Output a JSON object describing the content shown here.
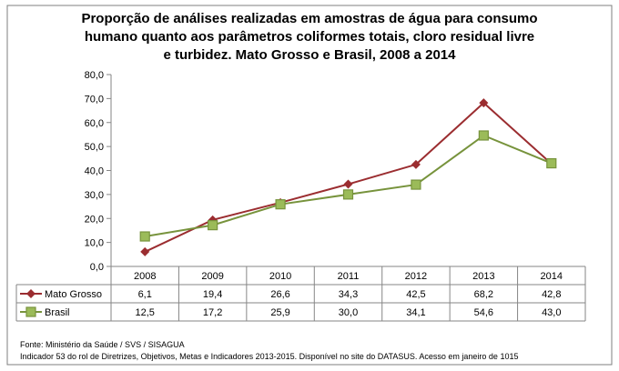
{
  "chart_data": {
    "type": "line",
    "title": "Proporção de análises realizadas em amostras de água para consumo humano quanto aos parâmetros coliformes totais, cloro residual livre e turbidez. Mato Grosso e Brasil, 2008 a 2014",
    "title_lines": [
      "Proporção de análises realizadas em amostras de água para consumo",
      "humano quanto aos parâmetros coliformes totais, cloro residual livre",
      "e turbidez. Mato Grosso e Brasil, 2008 a 2014"
    ],
    "categories": [
      "2008",
      "2009",
      "2010",
      "2011",
      "2012",
      "2013",
      "2014"
    ],
    "ylim": [
      0,
      80
    ],
    "yticks": [
      "0,0",
      "10,0",
      "20,0",
      "30,0",
      "40,0",
      "50,0",
      "60,0",
      "70,0",
      "80,0"
    ],
    "grid": false,
    "legend": "data-table",
    "series": [
      {
        "name": "Mato Grosso",
        "values": [
          6.1,
          19.4,
          26.6,
          34.3,
          42.5,
          68.2,
          42.8
        ],
        "labels": [
          "6,1",
          "19,4",
          "26,6",
          "34,3",
          "42,5",
          "68,2",
          "42,8"
        ],
        "color": "#9b2d30",
        "marker": "diamond"
      },
      {
        "name": "Brasil",
        "values": [
          12.5,
          17.2,
          25.9,
          30.0,
          34.1,
          54.6,
          43.0
        ],
        "labels": [
          "12,5",
          "17,2",
          "25,9",
          "30,0",
          "34,1",
          "54,6",
          "43,0"
        ],
        "color": "#77933c",
        "marker_fill": "#9bbb59",
        "marker": "square"
      }
    ]
  },
  "footer": {
    "source": "Fonte: Ministério da Saúde / SVS / SISAGUA",
    "note": "Indicador 53 do rol de Diretrizes, Objetivos, Metas e Indicadores 2013-2015. Disponível no site do DATASUS. Acesso em janeiro de 1015"
  }
}
